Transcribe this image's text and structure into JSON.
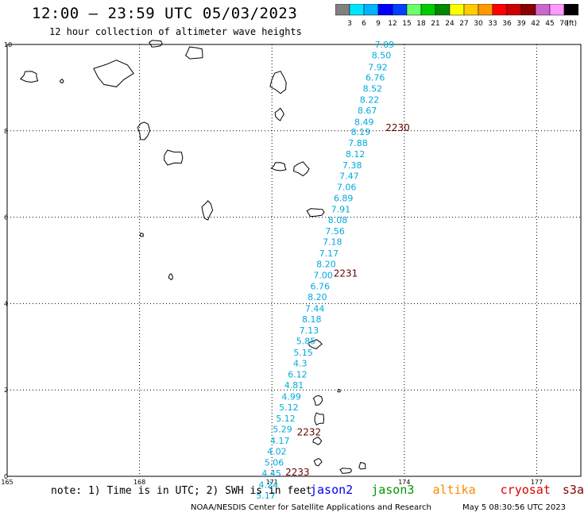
{
  "header": {
    "title": "12:00 – 23:59 UTC 05/03/2023",
    "subtitle": "12 hour collection of altimeter wave heights"
  },
  "scale": {
    "colors": [
      "#808080",
      "#00e5ff",
      "#00b3ff",
      "#0000ff",
      "#0040ff",
      "#6cff6c",
      "#00cc00",
      "#008800",
      "#ffff00",
      "#ffcc00",
      "#ff9900",
      "#ff0000",
      "#cc0000",
      "#880000",
      "#cc66cc",
      "#ff99ff",
      "#000000"
    ],
    "labels": [
      "3",
      "6",
      "9",
      "12",
      "15",
      "18",
      "21",
      "24",
      "27",
      "30",
      "33",
      "36",
      "39",
      "42",
      "45",
      "70"
    ],
    "unit": "(ft)"
  },
  "map": {
    "lon_ticks": [
      "165",
      "168",
      "171",
      "174",
      "177"
    ],
    "lat_ticks": [
      "0",
      "2",
      "4",
      "6",
      "8",
      "10"
    ],
    "lon_range": [
      165,
      178
    ],
    "lat_range": [
      0,
      10
    ],
    "grid_lons": [
      168,
      171,
      174,
      177
    ],
    "grid_lats": [
      2,
      4,
      6,
      8
    ],
    "track": [
      {
        "lon": 173.55,
        "lat": 10.0,
        "swh": "7.09"
      },
      {
        "lon": 173.48,
        "lat": 9.75,
        "swh": "8.50"
      },
      {
        "lon": 173.4,
        "lat": 9.48,
        "swh": "7.92"
      },
      {
        "lon": 173.34,
        "lat": 9.24,
        "swh": "6.76"
      },
      {
        "lon": 173.28,
        "lat": 8.98,
        "swh": "8.52"
      },
      {
        "lon": 173.21,
        "lat": 8.72,
        "swh": "8.22"
      },
      {
        "lon": 173.16,
        "lat": 8.47,
        "swh": "8.67"
      },
      {
        "lon": 173.09,
        "lat": 8.21,
        "swh": "8.49"
      },
      {
        "lon": 173.01,
        "lat": 7.98,
        "swh": "8.19"
      },
      {
        "lon": 172.95,
        "lat": 7.72,
        "swh": "7.88"
      },
      {
        "lon": 172.89,
        "lat": 7.46,
        "swh": "8.12"
      },
      {
        "lon": 172.82,
        "lat": 7.21,
        "swh": "7.38"
      },
      {
        "lon": 172.75,
        "lat": 6.96,
        "swh": "7.47"
      },
      {
        "lon": 172.69,
        "lat": 6.7,
        "swh": "7.06"
      },
      {
        "lon": 172.62,
        "lat": 6.44,
        "swh": "6.89"
      },
      {
        "lon": 172.56,
        "lat": 6.19,
        "swh": "7.91"
      },
      {
        "lon": 172.49,
        "lat": 5.94,
        "swh": "8.08"
      },
      {
        "lon": 172.43,
        "lat": 5.68,
        "swh": "7.56"
      },
      {
        "lon": 172.37,
        "lat": 5.43,
        "swh": "7.18"
      },
      {
        "lon": 172.29,
        "lat": 5.17,
        "swh": "7.17"
      },
      {
        "lon": 172.23,
        "lat": 4.92,
        "swh": "8.20"
      },
      {
        "lon": 172.16,
        "lat": 4.66,
        "swh": "7.00"
      },
      {
        "lon": 172.09,
        "lat": 4.4,
        "swh": "6.76"
      },
      {
        "lon": 172.03,
        "lat": 4.15,
        "swh": "8.20"
      },
      {
        "lon": 171.97,
        "lat": 3.89,
        "swh": "7.44"
      },
      {
        "lon": 171.9,
        "lat": 3.64,
        "swh": "8.18"
      },
      {
        "lon": 171.84,
        "lat": 3.38,
        "swh": "7.13"
      },
      {
        "lon": 171.77,
        "lat": 3.13,
        "swh": "5.85"
      },
      {
        "lon": 171.71,
        "lat": 2.87,
        "swh": "5.15"
      },
      {
        "lon": 171.64,
        "lat": 2.62,
        "swh": "4.3"
      },
      {
        "lon": 171.58,
        "lat": 2.36,
        "swh": "6.12"
      },
      {
        "lon": 171.5,
        "lat": 2.11,
        "swh": "4.81"
      },
      {
        "lon": 171.44,
        "lat": 1.85,
        "swh": "4.99"
      },
      {
        "lon": 171.38,
        "lat": 1.6,
        "swh": "5.12"
      },
      {
        "lon": 171.31,
        "lat": 1.34,
        "swh": "5.12"
      },
      {
        "lon": 171.24,
        "lat": 1.09,
        "swh": "5.29"
      },
      {
        "lon": 171.18,
        "lat": 0.83,
        "swh": "4.17"
      },
      {
        "lon": 171.11,
        "lat": 0.58,
        "swh": "4.02"
      },
      {
        "lon": 171.05,
        "lat": 0.32,
        "swh": "5.06"
      },
      {
        "lon": 170.99,
        "lat": 0.07,
        "swh": "4.45"
      },
      {
        "lon": 170.92,
        "lat": -0.19,
        "swh": "4.24"
      },
      {
        "lon": 170.86,
        "lat": -0.44,
        "swh": "5.17"
      }
    ],
    "time_marks": [
      {
        "lon": 173.85,
        "lat": 8.07,
        "label": "2230"
      },
      {
        "lon": 172.67,
        "lat": 4.7,
        "label": "2231"
      },
      {
        "lon": 171.84,
        "lat": 1.02,
        "label": "2232"
      },
      {
        "lon": 171.58,
        "lat": 0.09,
        "label": "2233"
      }
    ],
    "islands": [
      {
        "lon": 165.52,
        "lat": 9.25,
        "w": 26,
        "h": 16
      },
      {
        "lon": 166.24,
        "lat": 9.15,
        "w": 5,
        "h": 5
      },
      {
        "lon": 167.4,
        "lat": 9.33,
        "w": 52,
        "h": 36
      },
      {
        "lon": 168.36,
        "lat": 10.02,
        "w": 18,
        "h": 10
      },
      {
        "lon": 169.25,
        "lat": 9.8,
        "w": 26,
        "h": 18
      },
      {
        "lon": 171.16,
        "lat": 9.12,
        "w": 24,
        "h": 30
      },
      {
        "lon": 171.17,
        "lat": 8.38,
        "w": 12,
        "h": 16
      },
      {
        "lon": 168.09,
        "lat": 8.0,
        "w": 16,
        "h": 26
      },
      {
        "lon": 168.76,
        "lat": 7.38,
        "w": 28,
        "h": 22
      },
      {
        "lon": 171.17,
        "lat": 7.17,
        "w": 22,
        "h": 12
      },
      {
        "lon": 171.67,
        "lat": 7.12,
        "w": 22,
        "h": 18
      },
      {
        "lon": 169.53,
        "lat": 6.16,
        "w": 14,
        "h": 26
      },
      {
        "lon": 171.98,
        "lat": 6.11,
        "w": 24,
        "h": 12
      },
      {
        "lon": 168.05,
        "lat": 5.59,
        "w": 5,
        "h": 5
      },
      {
        "lon": 168.71,
        "lat": 4.62,
        "w": 6,
        "h": 8
      },
      {
        "lon": 171.98,
        "lat": 3.06,
        "w": 18,
        "h": 12
      },
      {
        "lon": 172.04,
        "lat": 1.76,
        "w": 12,
        "h": 14
      },
      {
        "lon": 172.07,
        "lat": 1.33,
        "w": 14,
        "h": 18
      },
      {
        "lon": 172.52,
        "lat": 1.98,
        "w": 4,
        "h": 4
      },
      {
        "lon": 172.03,
        "lat": 0.82,
        "w": 12,
        "h": 10
      },
      {
        "lon": 172.04,
        "lat": 0.33,
        "w": 10,
        "h": 10
      },
      {
        "lon": 172.67,
        "lat": 0.13,
        "w": 16,
        "h": 8
      },
      {
        "lon": 173.05,
        "lat": 0.24,
        "w": 10,
        "h": 10
      }
    ]
  },
  "footer": {
    "note": "note: 1) Time is in UTC; 2) SWH is in feet",
    "satellites": [
      {
        "name": "jason2",
        "color": "#0000ee"
      },
      {
        "name": "jason3",
        "color": "#009900"
      },
      {
        "name": "altika",
        "color": "#ff8800"
      },
      {
        "name": "cryosat",
        "color": "#dd0000"
      },
      {
        "name": "s3a",
        "color": "#880000"
      }
    ],
    "credit": "NOAA/NESDIS Center for Satellite Applications and Research",
    "timestamp": "May  5 08:30:56 UTC 2023"
  }
}
